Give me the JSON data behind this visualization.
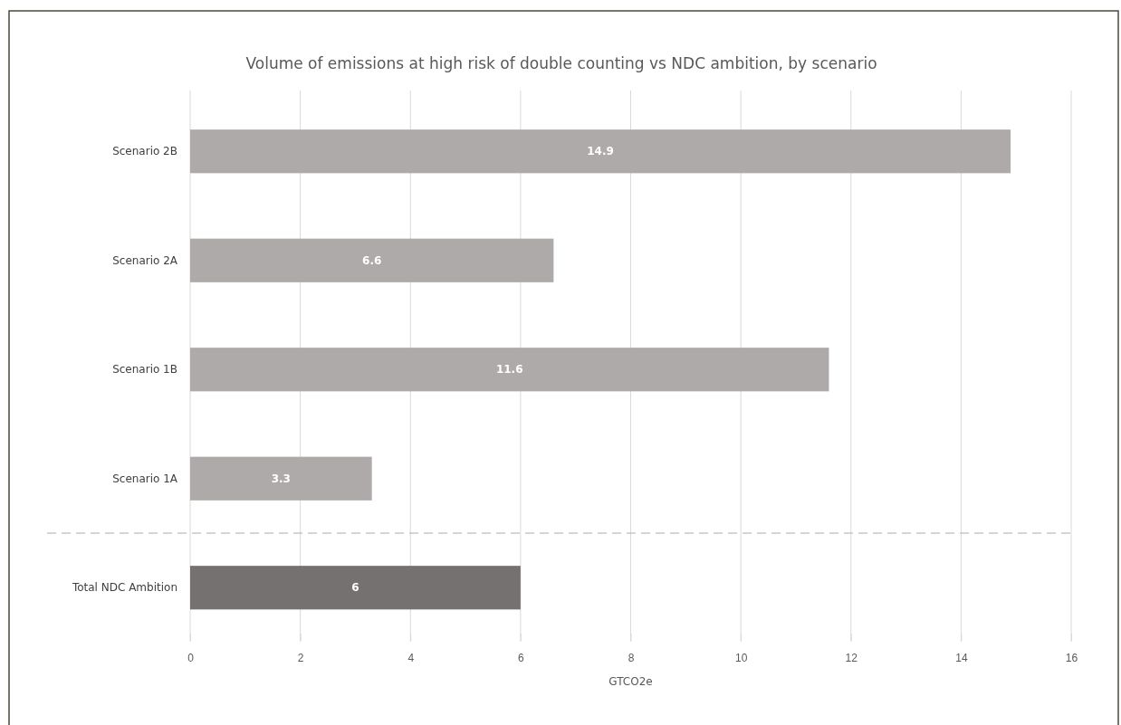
{
  "chart_data": {
    "type": "bar",
    "orientation": "horizontal",
    "title": "Volume of emissions at high risk of double counting vs NDC ambition, by scenario",
    "xlabel": "GTCO2e",
    "categories": [
      "Scenario 2B",
      "Scenario 2A",
      "Scenario 1B",
      "Scenario 1A",
      "Total NDC Ambition"
    ],
    "values": [
      14.9,
      6.6,
      11.6,
      3.3,
      6
    ],
    "colors": [
      "#aeaaaa",
      "#aeaaaa",
      "#aeaaaa",
      "#aeaaaa",
      "#767171"
    ],
    "xlim": [
      0,
      16
    ],
    "xticks": [
      0,
      2,
      4,
      6,
      8,
      10,
      12,
      14,
      16
    ],
    "grid": "x",
    "data_labels": true
  }
}
